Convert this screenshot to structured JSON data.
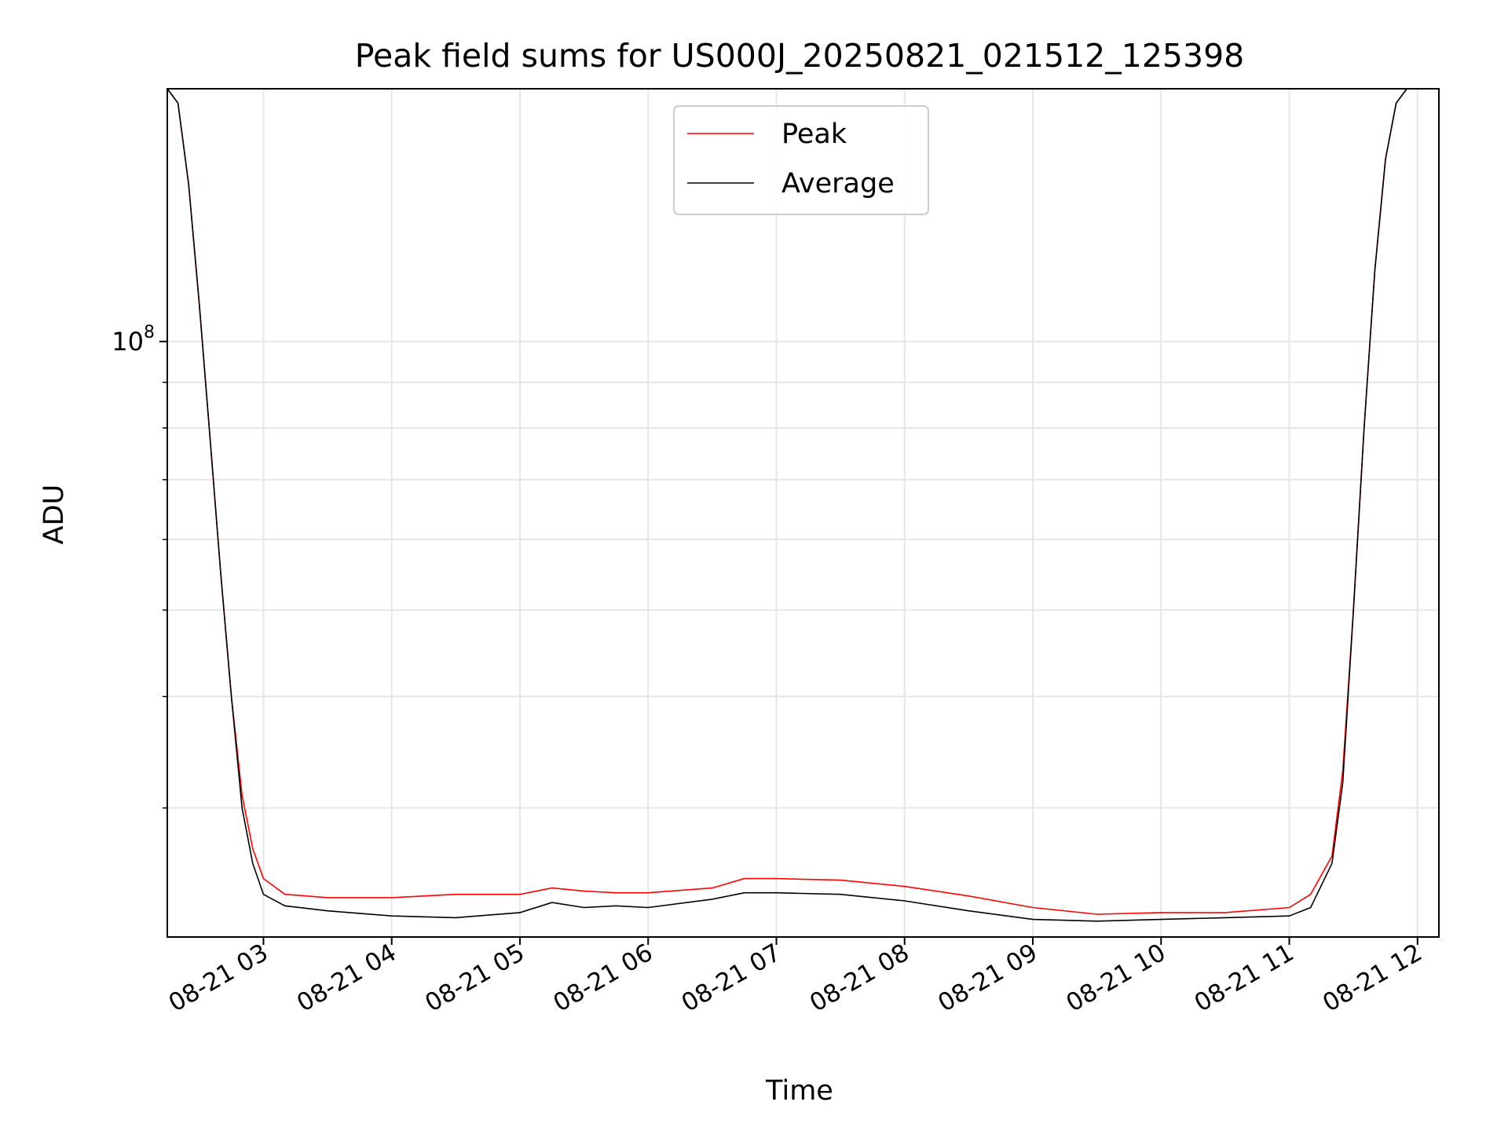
{
  "chart_data": {
    "type": "line",
    "title": "Peak field sums for US000J_20250821_021512_125398",
    "xlabel": "Time",
    "ylabel": "ADU",
    "y_scale": "log",
    "ylim": [
      21500000,
      192000000
    ],
    "xlim": [
      "08-21 02:15:00",
      "08-21 12:10:00"
    ],
    "x_ticks": [
      "08-21 03",
      "08-21 04",
      "08-21 05",
      "08-21 06",
      "08-21 07",
      "08-21 08",
      "08-21 09",
      "08-21 10",
      "08-21 11",
      "08-21 12"
    ],
    "y_ticks": [
      {
        "value": 100000000,
        "base": "10",
        "exp": "8"
      }
    ],
    "grid": true,
    "legend": {
      "position": "upper center"
    },
    "series": [
      {
        "name": "Peak",
        "color": "#ff0000",
        "x": [
          "08-21 02:15",
          "08-21 02:20",
          "08-21 02:25",
          "08-21 02:30",
          "08-21 02:35",
          "08-21 02:40",
          "08-21 02:45",
          "08-21 02:50",
          "08-21 02:55",
          "08-21 03:00",
          "08-21 03:10",
          "08-21 03:30",
          "08-21 04:00",
          "08-21 04:30",
          "08-21 05:00",
          "08-21 05:15",
          "08-21 05:30",
          "08-21 05:45",
          "08-21 06:00",
          "08-21 06:30",
          "08-21 06:45",
          "08-21 07:00",
          "08-21 07:30",
          "08-21 08:00",
          "08-21 08:30",
          "08-21 09:00",
          "08-21 09:30",
          "08-21 10:00",
          "08-21 10:30",
          "08-21 11:00",
          "08-21 11:10",
          "08-21 11:20",
          "08-21 11:25",
          "08-21 11:30",
          "08-21 11:35",
          "08-21 11:40",
          "08-21 11:45",
          "08-21 11:50",
          "08-21 11:55"
        ],
        "y": [
          192000000,
          185000000,
          150000000,
          110000000,
          78000000,
          55000000,
          40000000,
          31000000,
          27000000,
          25000000,
          24000000,
          23800000,
          23800000,
          24000000,
          24000000,
          24400000,
          24200000,
          24100000,
          24100000,
          24400000,
          25000000,
          25000000,
          24900000,
          24500000,
          23900000,
          23200000,
          22800000,
          22900000,
          22900000,
          23200000,
          24000000,
          26500000,
          33000000,
          50000000,
          80000000,
          120000000,
          160000000,
          185000000,
          192000000
        ]
      },
      {
        "name": "Average",
        "color": "#000000",
        "x": [
          "08-21 02:15",
          "08-21 02:20",
          "08-21 02:25",
          "08-21 02:30",
          "08-21 02:35",
          "08-21 02:40",
          "08-21 02:45",
          "08-21 02:50",
          "08-21 02:55",
          "08-21 03:00",
          "08-21 03:10",
          "08-21 03:30",
          "08-21 04:00",
          "08-21 04:30",
          "08-21 05:00",
          "08-21 05:15",
          "08-21 05:30",
          "08-21 05:45",
          "08-21 06:00",
          "08-21 06:30",
          "08-21 06:45",
          "08-21 07:00",
          "08-21 07:30",
          "08-21 08:00",
          "08-21 08:30",
          "08-21 09:00",
          "08-21 09:30",
          "08-21 10:00",
          "08-21 10:30",
          "08-21 11:00",
          "08-21 11:10",
          "08-21 11:20",
          "08-21 11:25",
          "08-21 11:30",
          "08-21 11:35",
          "08-21 11:40",
          "08-21 11:45",
          "08-21 11:50",
          "08-21 11:55"
        ],
        "y": [
          192000000,
          185000000,
          150000000,
          110000000,
          78000000,
          55000000,
          40000000,
          30000000,
          26000000,
          24000000,
          23300000,
          23000000,
          22700000,
          22600000,
          22900000,
          23500000,
          23200000,
          23300000,
          23200000,
          23700000,
          24100000,
          24100000,
          24000000,
          23600000,
          23000000,
          22500000,
          22400000,
          22500000,
          22600000,
          22700000,
          23200000,
          26000000,
          32000000,
          50000000,
          80000000,
          120000000,
          160000000,
          185000000,
          192000000
        ]
      }
    ]
  }
}
